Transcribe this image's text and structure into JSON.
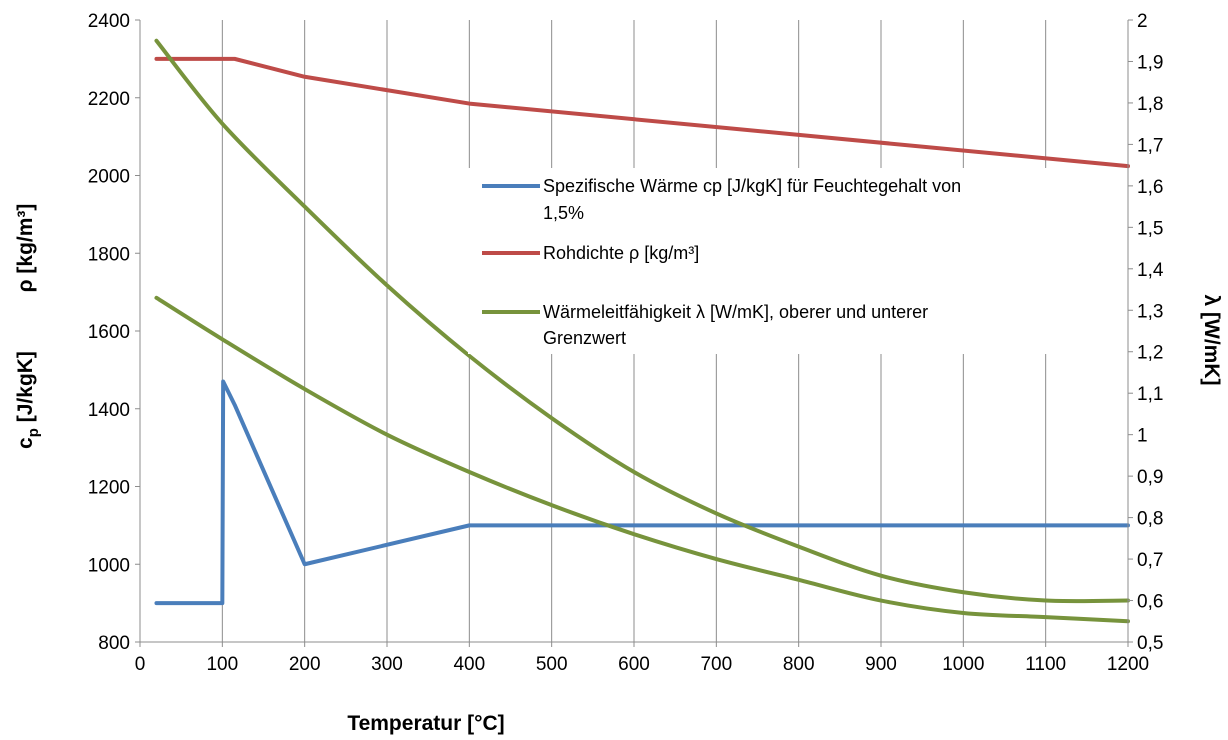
{
  "chart_data": {
    "type": "line",
    "xlabel": "Temperatur [°C]",
    "ylabel_left_rho": "ρ [kg/m³]",
    "ylabel_left_cp_main": "c",
    "ylabel_left_cp_sub": "p",
    "ylabel_left_cp_unit": " [J/kgK]",
    "ylabel_right": "λ [W/mK]",
    "xlim": [
      0,
      1200
    ],
    "ylim_left": [
      800,
      2400
    ],
    "ylim_right": [
      0.5,
      2
    ],
    "x_ticks": [
      "0",
      "100",
      "200",
      "300",
      "400",
      "500",
      "600",
      "700",
      "800",
      "900",
      "1000",
      "1100",
      "1200"
    ],
    "y_left_ticks": [
      "800",
      "1000",
      "1200",
      "1400",
      "1600",
      "1800",
      "2000",
      "2200",
      "2400"
    ],
    "y_right_ticks": [
      "0,5",
      "0,6",
      "0,7",
      "0,8",
      "0,9",
      "1",
      "1,1",
      "1,2",
      "1,3",
      "1,4",
      "1,5",
      "1,6",
      "1,7",
      "1,8",
      "1,9",
      "2"
    ],
    "grid": "vertical",
    "legend_position": "right-middle",
    "series": [
      {
        "name": "Spezifische Wärme cp [J/kgK] für Feuchtegehalt von 1,5%",
        "axis": "left",
        "color": "#4a7ebb",
        "x": [
          20,
          99,
          100,
          101,
          115,
          200,
          400,
          1200
        ],
        "y": [
          900,
          900,
          900,
          1470,
          1410,
          1000,
          1100,
          1100
        ]
      },
      {
        "name": "Rohdichte ρ [kg/m³]",
        "axis": "left",
        "color": "#be4b48",
        "x": [
          20,
          115,
          200,
          400,
          1200
        ],
        "y": [
          2300,
          2300,
          2254,
          2185,
          2024
        ]
      },
      {
        "name": "Wärmeleitfähigkeit λ [W/mK], oberer und unterer Grenzwert",
        "axis": "right",
        "color": "#77933c",
        "x": [
          20,
          100,
          200,
          300,
          400,
          500,
          600,
          700,
          800,
          900,
          1000,
          1100,
          1200
        ],
        "y": [
          1.95,
          1.75,
          1.55,
          1.36,
          1.19,
          1.04,
          0.91,
          0.81,
          0.73,
          0.66,
          0.62,
          0.6,
          0.6
        ]
      },
      {
        "name": "",
        "axis": "right",
        "color": "#77933c",
        "x": [
          20,
          100,
          200,
          300,
          400,
          500,
          600,
          700,
          800,
          900,
          1000,
          1100,
          1200
        ],
        "y": [
          1.33,
          1.23,
          1.11,
          1.0,
          0.91,
          0.83,
          0.76,
          0.7,
          0.65,
          0.6,
          0.57,
          0.56,
          0.55
        ]
      }
    ],
    "legend": [
      {
        "line1": "Spezifische Wärme cp [J/kgK] für Feuchtegehalt von",
        "line2": "1,5%",
        "color": "#4a7ebb"
      },
      {
        "line1": "Rohdichte ρ [kg/m³]",
        "line2": "",
        "color": "#be4b48"
      },
      {
        "line1": "Wärmeleitfähigkeit λ [W/mK], oberer und unterer",
        "line2": "Grenzwert",
        "color": "#77933c"
      }
    ]
  }
}
